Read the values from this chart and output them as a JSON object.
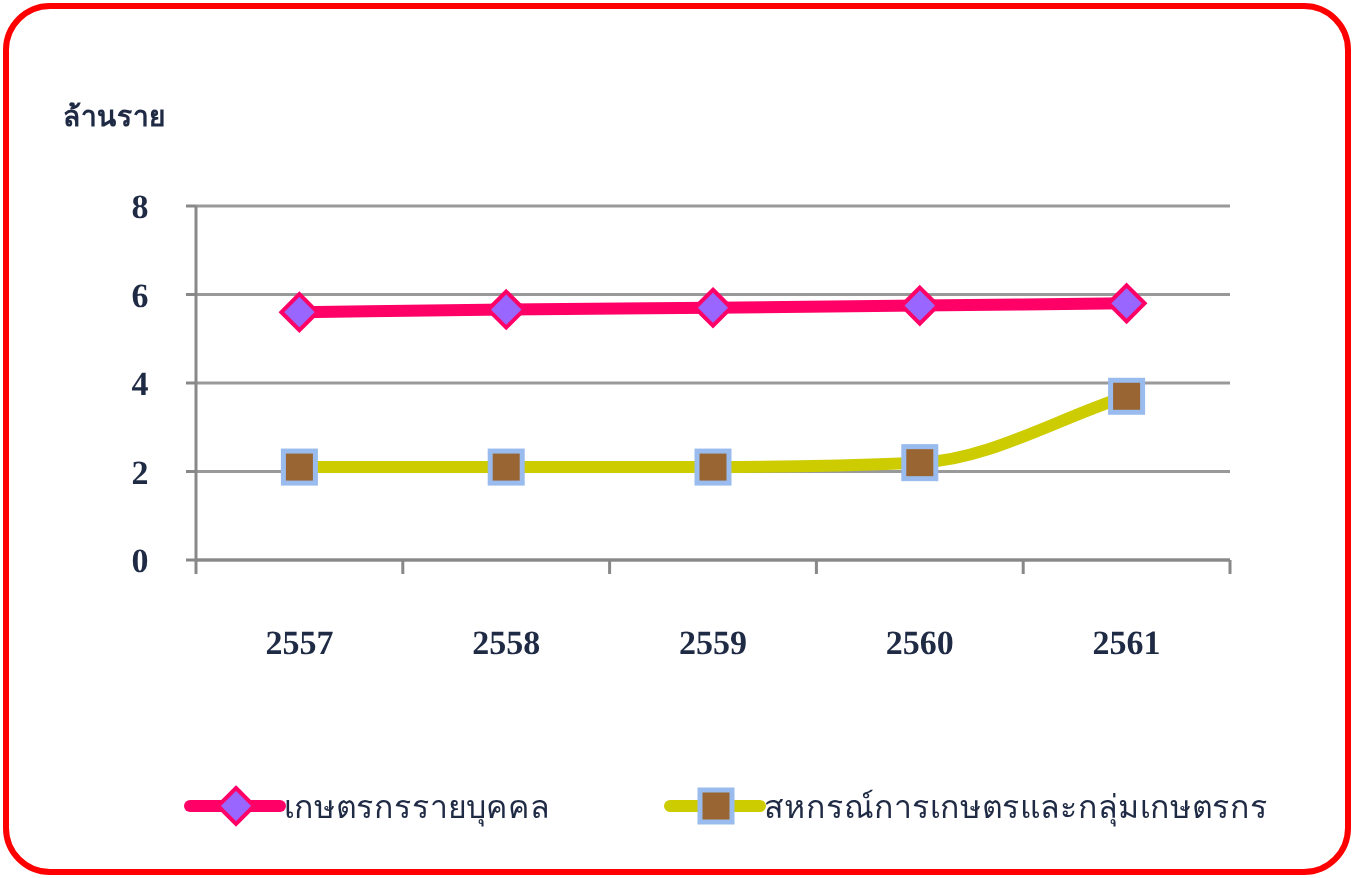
{
  "chart_data": {
    "type": "line",
    "ylabel": "ล้านราย",
    "categories": [
      "2557",
      "2558",
      "2559",
      "2560",
      "2561"
    ],
    "ylim": [
      0,
      8
    ],
    "yticks": [
      0,
      2,
      4,
      6,
      8
    ],
    "grid": "y",
    "legend": "bottom",
    "series": [
      {
        "name": "เกษตรกรรายบุคคล",
        "color": "#ff0066",
        "marker": "diamond",
        "values": [
          5.6,
          5.66,
          5.7,
          5.75,
          5.8
        ]
      },
      {
        "name": "สหกรณ์การเกษตรและกลุ่มเกษตรกร",
        "color": "#cccc00",
        "marker": "square",
        "values": [
          2.1,
          2.1,
          2.1,
          2.2,
          3.7
        ]
      }
    ]
  }
}
